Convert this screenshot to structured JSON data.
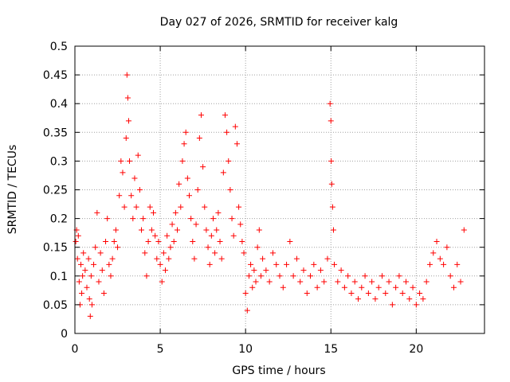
{
  "chart_data": {
    "type": "scatter",
    "title": "Day 027 of 2026, SRMTID for receiver kalg",
    "xlabel": "GPS time / hours",
    "ylabel": "SRMTID / TECUs",
    "xlim": [
      0,
      24
    ],
    "ylim": [
      0,
      0.5
    ],
    "x_ticks": [
      0,
      5,
      10,
      15,
      20
    ],
    "x_tick_labels": [
      "0",
      "5",
      "10",
      "15",
      "20"
    ],
    "y_ticks": [
      0,
      0.05,
      0.1,
      0.15,
      0.2,
      0.25,
      0.3,
      0.35,
      0.4,
      0.45,
      0.5
    ],
    "y_tick_labels": [
      "0",
      "0.05",
      "0.1",
      "0.15",
      "0.2",
      "0.25",
      "0.3",
      "0.35",
      "0.4",
      "0.45",
      "0.5"
    ],
    "grid": true,
    "marker": "plus",
    "series": [
      {
        "name": "SRMTID",
        "color": "#ff0000",
        "points": [
          [
            0.05,
            0.16
          ],
          [
            0.1,
            0.18
          ],
          [
            0.15,
            0.13
          ],
          [
            0.2,
            0.17
          ],
          [
            0.25,
            0.09
          ],
          [
            0.3,
            0.05
          ],
          [
            0.35,
            0.12
          ],
          [
            0.4,
            0.07
          ],
          [
            0.45,
            0.1
          ],
          [
            0.5,
            0.14
          ],
          [
            0.6,
            0.11
          ],
          [
            0.7,
            0.08
          ],
          [
            0.8,
            0.13
          ],
          [
            0.85,
            0.06
          ],
          [
            0.9,
            0.03
          ],
          [
            0.95,
            0.1
          ],
          [
            1.0,
            0.05
          ],
          [
            1.1,
            0.12
          ],
          [
            1.2,
            0.15
          ],
          [
            1.3,
            0.21
          ],
          [
            1.4,
            0.09
          ],
          [
            1.5,
            0.14
          ],
          [
            1.6,
            0.11
          ],
          [
            1.7,
            0.07
          ],
          [
            1.8,
            0.16
          ],
          [
            1.9,
            0.2
          ],
          [
            2.0,
            0.12
          ],
          [
            2.1,
            0.1
          ],
          [
            2.2,
            0.13
          ],
          [
            2.3,
            0.16
          ],
          [
            2.4,
            0.18
          ],
          [
            2.5,
            0.15
          ],
          [
            2.6,
            0.24
          ],
          [
            2.7,
            0.3
          ],
          [
            2.8,
            0.28
          ],
          [
            2.9,
            0.22
          ],
          [
            3.0,
            0.34
          ],
          [
            3.05,
            0.45
          ],
          [
            3.1,
            0.41
          ],
          [
            3.15,
            0.37
          ],
          [
            3.2,
            0.3
          ],
          [
            3.3,
            0.24
          ],
          [
            3.4,
            0.2
          ],
          [
            3.5,
            0.27
          ],
          [
            3.6,
            0.22
          ],
          [
            3.7,
            0.31
          ],
          [
            3.8,
            0.25
          ],
          [
            3.9,
            0.18
          ],
          [
            4.0,
            0.2
          ],
          [
            4.1,
            0.14
          ],
          [
            4.2,
            0.1
          ],
          [
            4.3,
            0.16
          ],
          [
            4.4,
            0.22
          ],
          [
            4.5,
            0.18
          ],
          [
            4.6,
            0.21
          ],
          [
            4.7,
            0.17
          ],
          [
            4.8,
            0.13
          ],
          [
            4.9,
            0.16
          ],
          [
            5.0,
            0.12
          ],
          [
            5.1,
            0.09
          ],
          [
            5.2,
            0.14
          ],
          [
            5.3,
            0.11
          ],
          [
            5.4,
            0.17
          ],
          [
            5.5,
            0.13
          ],
          [
            5.6,
            0.15
          ],
          [
            5.7,
            0.19
          ],
          [
            5.8,
            0.16
          ],
          [
            5.9,
            0.21
          ],
          [
            6.0,
            0.18
          ],
          [
            6.1,
            0.26
          ],
          [
            6.2,
            0.22
          ],
          [
            6.3,
            0.3
          ],
          [
            6.4,
            0.33
          ],
          [
            6.5,
            0.35
          ],
          [
            6.6,
            0.27
          ],
          [
            6.7,
            0.24
          ],
          [
            6.8,
            0.2
          ],
          [
            6.9,
            0.16
          ],
          [
            7.0,
            0.13
          ],
          [
            7.1,
            0.19
          ],
          [
            7.2,
            0.25
          ],
          [
            7.3,
            0.34
          ],
          [
            7.4,
            0.38
          ],
          [
            7.5,
            0.29
          ],
          [
            7.6,
            0.22
          ],
          [
            7.7,
            0.18
          ],
          [
            7.8,
            0.15
          ],
          [
            7.9,
            0.12
          ],
          [
            8.0,
            0.17
          ],
          [
            8.1,
            0.2
          ],
          [
            8.2,
            0.14
          ],
          [
            8.3,
            0.18
          ],
          [
            8.4,
            0.21
          ],
          [
            8.5,
            0.16
          ],
          [
            8.6,
            0.13
          ],
          [
            8.7,
            0.28
          ],
          [
            8.8,
            0.38
          ],
          [
            8.9,
            0.35
          ],
          [
            9.0,
            0.3
          ],
          [
            9.1,
            0.25
          ],
          [
            9.2,
            0.2
          ],
          [
            9.3,
            0.17
          ],
          [
            9.4,
            0.36
          ],
          [
            9.5,
            0.33
          ],
          [
            9.6,
            0.22
          ],
          [
            9.7,
            0.19
          ],
          [
            9.8,
            0.16
          ],
          [
            9.9,
            0.14
          ],
          [
            10.0,
            0.07
          ],
          [
            10.1,
            0.04
          ],
          [
            10.2,
            0.1
          ],
          [
            10.3,
            0.12
          ],
          [
            10.4,
            0.08
          ],
          [
            10.5,
            0.11
          ],
          [
            10.6,
            0.09
          ],
          [
            10.7,
            0.15
          ],
          [
            10.8,
            0.18
          ],
          [
            10.9,
            0.1
          ],
          [
            11.0,
            0.13
          ],
          [
            11.2,
            0.11
          ],
          [
            11.4,
            0.09
          ],
          [
            11.6,
            0.14
          ],
          [
            11.8,
            0.12
          ],
          [
            12.0,
            0.1
          ],
          [
            12.2,
            0.08
          ],
          [
            12.4,
            0.12
          ],
          [
            12.6,
            0.16
          ],
          [
            12.8,
            0.1
          ],
          [
            13.0,
            0.13
          ],
          [
            13.2,
            0.09
          ],
          [
            13.4,
            0.11
          ],
          [
            13.6,
            0.07
          ],
          [
            13.8,
            0.1
          ],
          [
            14.0,
            0.12
          ],
          [
            14.2,
            0.08
          ],
          [
            14.4,
            0.11
          ],
          [
            14.6,
            0.09
          ],
          [
            14.8,
            0.13
          ],
          [
            14.95,
            0.4
          ],
          [
            15.0,
            0.37
          ],
          [
            15.02,
            0.3
          ],
          [
            15.05,
            0.26
          ],
          [
            15.1,
            0.22
          ],
          [
            15.15,
            0.18
          ],
          [
            15.2,
            0.12
          ],
          [
            15.4,
            0.09
          ],
          [
            15.6,
            0.11
          ],
          [
            15.8,
            0.08
          ],
          [
            16.0,
            0.1
          ],
          [
            16.2,
            0.07
          ],
          [
            16.4,
            0.09
          ],
          [
            16.6,
            0.06
          ],
          [
            16.8,
            0.08
          ],
          [
            17.0,
            0.1
          ],
          [
            17.2,
            0.07
          ],
          [
            17.4,
            0.09
          ],
          [
            17.6,
            0.06
          ],
          [
            17.8,
            0.08
          ],
          [
            18.0,
            0.1
          ],
          [
            18.2,
            0.07
          ],
          [
            18.4,
            0.09
          ],
          [
            18.6,
            0.05
          ],
          [
            18.8,
            0.08
          ],
          [
            19.0,
            0.1
          ],
          [
            19.2,
            0.07
          ],
          [
            19.4,
            0.09
          ],
          [
            19.6,
            0.06
          ],
          [
            19.8,
            0.08
          ],
          [
            20.0,
            0.05
          ],
          [
            20.2,
            0.07
          ],
          [
            20.4,
            0.06
          ],
          [
            20.6,
            0.09
          ],
          [
            20.8,
            0.12
          ],
          [
            21.0,
            0.14
          ],
          [
            21.2,
            0.16
          ],
          [
            21.4,
            0.13
          ],
          [
            21.6,
            0.12
          ],
          [
            21.8,
            0.15
          ],
          [
            22.0,
            0.1
          ],
          [
            22.2,
            0.08
          ],
          [
            22.4,
            0.12
          ],
          [
            22.6,
            0.09
          ],
          [
            22.8,
            0.18
          ]
        ]
      }
    ]
  }
}
